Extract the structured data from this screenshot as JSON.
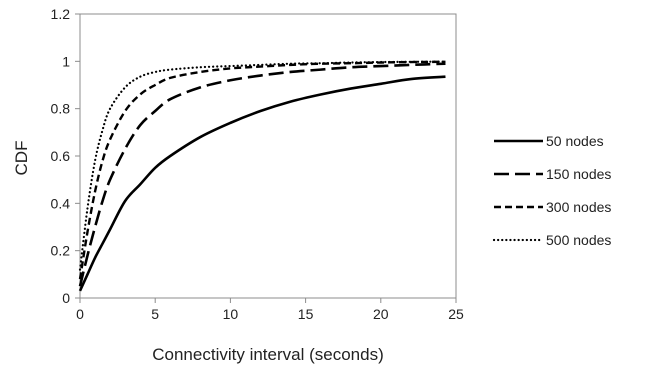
{
  "chart_data": {
    "type": "line",
    "title": "",
    "xlabel": "Connectivity interval (seconds)",
    "ylabel": "CDF",
    "xlim": [
      0,
      25
    ],
    "ylim": [
      0,
      1.2
    ],
    "x_ticks": [
      "0",
      "5",
      "10",
      "15",
      "20",
      "25"
    ],
    "y_ticks": [
      "0",
      "0.2",
      "0.4",
      "0.6",
      "0.8",
      "1",
      "1.2"
    ],
    "grid": false,
    "legend_position": "right",
    "line_color": "#000000",
    "series": [
      {
        "name": "50 nodes",
        "style": "solid",
        "x": [
          0,
          0.5,
          1,
          1.5,
          2,
          3,
          4,
          5,
          6,
          8,
          10,
          12,
          14,
          16,
          18,
          20,
          22,
          24.3
        ],
        "y": [
          0.03,
          0.1,
          0.17,
          0.23,
          0.29,
          0.41,
          0.48,
          0.55,
          0.6,
          0.68,
          0.74,
          0.79,
          0.83,
          0.86,
          0.885,
          0.905,
          0.925,
          0.935
        ]
      },
      {
        "name": "150 nodes",
        "style": "long-dash",
        "x": [
          0,
          0.5,
          1,
          1.5,
          2,
          3,
          4,
          5,
          6,
          8,
          10,
          12,
          14,
          16,
          18,
          20,
          22,
          24.3
        ],
        "y": [
          0.05,
          0.18,
          0.3,
          0.41,
          0.5,
          0.63,
          0.73,
          0.79,
          0.84,
          0.89,
          0.92,
          0.94,
          0.955,
          0.965,
          0.975,
          0.98,
          0.985,
          0.99
        ]
      },
      {
        "name": "300 nodes",
        "style": "dash",
        "x": [
          0,
          0.5,
          1,
          1.5,
          2,
          3,
          4,
          5,
          6,
          8,
          10,
          12,
          14,
          16,
          18,
          20,
          22,
          24.3
        ],
        "y": [
          0.08,
          0.28,
          0.45,
          0.58,
          0.67,
          0.79,
          0.86,
          0.9,
          0.93,
          0.955,
          0.97,
          0.978,
          0.985,
          0.99,
          0.992,
          0.995,
          0.997,
          0.998
        ]
      },
      {
        "name": "500 nodes",
        "style": "dotted",
        "x": [
          0,
          0.5,
          1,
          1.5,
          2,
          3,
          4,
          5,
          6,
          8,
          10,
          12,
          14,
          16,
          18,
          20,
          22,
          24.3
        ],
        "y": [
          0.12,
          0.38,
          0.58,
          0.71,
          0.8,
          0.89,
          0.935,
          0.955,
          0.965,
          0.975,
          0.98,
          0.985,
          0.99,
          0.992,
          0.995,
          0.997,
          0.998,
          0.999
        ]
      }
    ]
  }
}
